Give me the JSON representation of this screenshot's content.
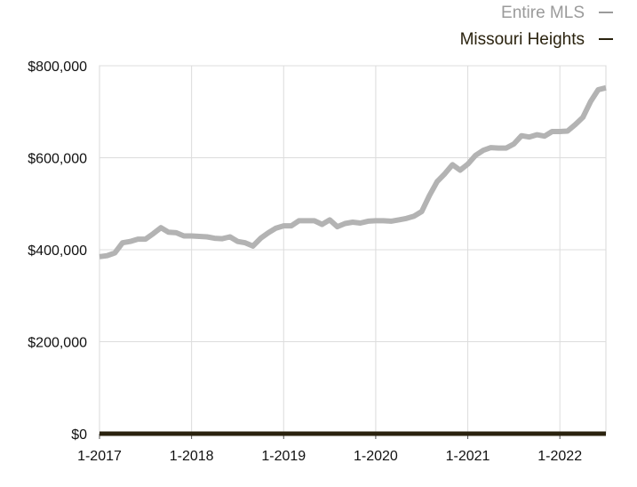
{
  "chart_data": {
    "type": "line",
    "title": "",
    "xlabel": "",
    "ylabel": "",
    "ylim": [
      0,
      800000
    ],
    "yticks": [
      "$0",
      "$200,000",
      "$400,000",
      "$600,000",
      "$800,000"
    ],
    "ytick_values": [
      0,
      200000,
      400000,
      600000,
      800000
    ],
    "xtick_labels": [
      "1-2017",
      "1-2018",
      "1-2019",
      "1-2020",
      "1-2021",
      "1-2022"
    ],
    "xrange_months": [
      "2017-01",
      "2022-07"
    ],
    "grid": true,
    "legend_placement": "top-right",
    "legend": [
      {
        "name": "Entire MLS",
        "marker": "—",
        "color": "#9b9b9b"
      },
      {
        "name": "Missouri Heights",
        "marker": "—",
        "color": "#2a220e"
      }
    ],
    "series": [
      {
        "name": "Entire MLS",
        "color": "#b3b3b3",
        "x": [
          "2017-01",
          "2017-02",
          "2017-03",
          "2017-04",
          "2017-05",
          "2017-06",
          "2017-07",
          "2017-08",
          "2017-09",
          "2017-10",
          "2017-11",
          "2017-12",
          "2018-01",
          "2018-02",
          "2018-03",
          "2018-04",
          "2018-05",
          "2018-06",
          "2018-07",
          "2018-08",
          "2018-09",
          "2018-10",
          "2018-11",
          "2018-12",
          "2019-01",
          "2019-02",
          "2019-03",
          "2019-04",
          "2019-05",
          "2019-06",
          "2019-07",
          "2019-08",
          "2019-09",
          "2019-10",
          "2019-11",
          "2019-12",
          "2020-01",
          "2020-02",
          "2020-03",
          "2020-04",
          "2020-05",
          "2020-06",
          "2020-07",
          "2020-08",
          "2020-09",
          "2020-10",
          "2020-11",
          "2020-12",
          "2021-01",
          "2021-02",
          "2021-03",
          "2021-04",
          "2021-05",
          "2021-06",
          "2021-07",
          "2021-08",
          "2021-09",
          "2021-10",
          "2021-11",
          "2021-12",
          "2022-01",
          "2022-02",
          "2022-03",
          "2022-04",
          "2022-05",
          "2022-06",
          "2022-07"
        ],
        "values": [
          385000,
          387000,
          393000,
          415000,
          418000,
          423000,
          423000,
          435000,
          448000,
          438000,
          437000,
          430000,
          430000,
          429000,
          428000,
          425000,
          424000,
          428000,
          418000,
          415000,
          408000,
          425000,
          437000,
          447000,
          452000,
          452000,
          463000,
          463000,
          463000,
          455000,
          465000,
          450000,
          457000,
          460000,
          458000,
          462000,
          463000,
          463000,
          462000,
          465000,
          468000,
          473000,
          483000,
          518000,
          548000,
          565000,
          585000,
          573000,
          586000,
          605000,
          616000,
          622000,
          621000,
          621000,
          630000,
          648000,
          645000,
          650000,
          647000,
          657000,
          657000,
          658000,
          672000,
          688000,
          722000,
          748000,
          752000
        ]
      },
      {
        "name": "Missouri Heights",
        "color": "#2a220e",
        "x": [
          "2017-01",
          "2022-07"
        ],
        "values": [
          0,
          0
        ]
      }
    ]
  }
}
